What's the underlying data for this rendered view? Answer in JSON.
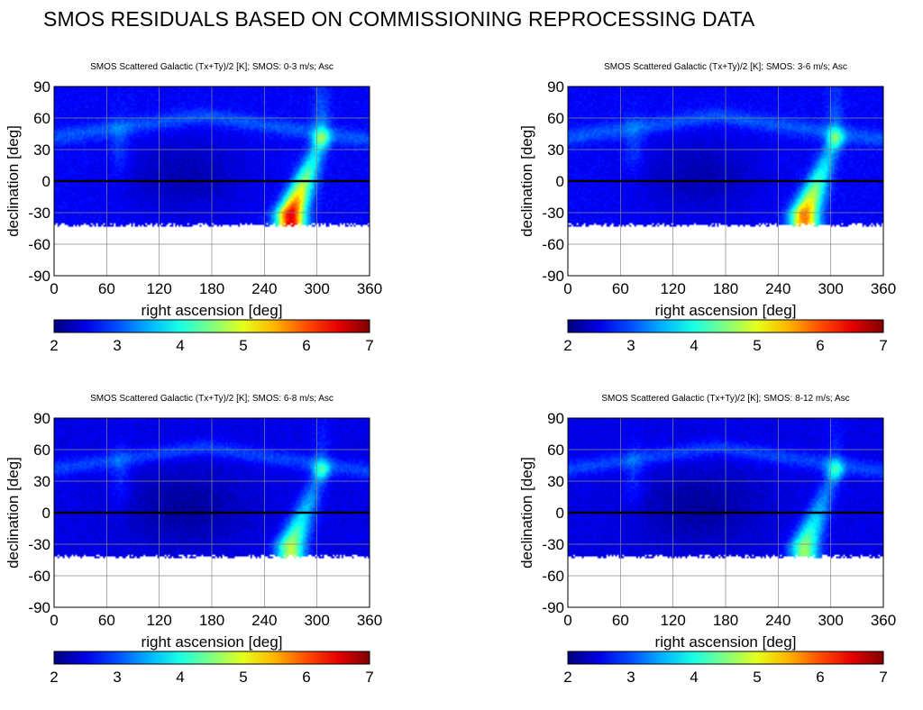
{
  "page": {
    "title": "SMOS RESIDUALS BASED ON COMMISSIONING REPROCESSING DATA"
  },
  "colors": {
    "map_background": "#0a2ad8",
    "equator_line": "#000000",
    "grid": "#888888",
    "colormap": "jet"
  },
  "chart_data": [
    {
      "type": "heatmap",
      "title": "SMOS Scattered Galactic (Tx+Ty)/2 [K]; SMOS: 0-3 m/s; Asc",
      "xlabel": "right ascension [deg]",
      "ylabel": "declination [deg]",
      "xlim": [
        0,
        360
      ],
      "ylim": [
        -90,
        90
      ],
      "xticks": [
        "0",
        "60",
        "120",
        "180",
        "240",
        "300",
        "360"
      ],
      "yticks": [
        "90",
        "60",
        "30",
        "0",
        "-30",
        "-60",
        "-90"
      ],
      "colorbar": {
        "range": [
          2,
          7
        ],
        "ticks": [
          "2",
          "3",
          "4",
          "5",
          "6",
          "7"
        ]
      },
      "grid": true,
      "coverage_min_dec": -42,
      "features": {
        "galactic_plane_peak_ra": 270,
        "galactic_plane_peak_dec": -30,
        "peak_value": 6.5,
        "cygnus_spot_ra": 305,
        "cygnus_spot_dec": 40,
        "background_value": 2.6
      }
    },
    {
      "type": "heatmap",
      "title": "SMOS Scattered Galactic (Tx+Ty)/2 [K]; SMOS: 3-6 m/s; Asc",
      "xlabel": "right ascension [deg]",
      "ylabel": "declination [deg]",
      "xlim": [
        0,
        360
      ],
      "ylim": [
        -90,
        90
      ],
      "xticks": [
        "0",
        "60",
        "120",
        "180",
        "240",
        "300",
        "360"
      ],
      "yticks": [
        "90",
        "60",
        "30",
        "0",
        "-30",
        "-60",
        "-90"
      ],
      "colorbar": {
        "range": [
          2,
          7
        ],
        "ticks": [
          "2",
          "3",
          "4",
          "5",
          "6",
          "7"
        ]
      },
      "grid": true,
      "coverage_min_dec": -42,
      "features": {
        "galactic_plane_peak_ra": 270,
        "galactic_plane_peak_dec": -30,
        "peak_value": 5.8,
        "cygnus_spot_ra": 305,
        "cygnus_spot_dec": 40,
        "background_value": 2.6
      }
    },
    {
      "type": "heatmap",
      "title": "SMOS Scattered Galactic (Tx+Ty)/2 [K]; SMOS: 6-8 m/s; Asc",
      "xlabel": "right ascension [deg]",
      "ylabel": "declination [deg]",
      "xlim": [
        0,
        360
      ],
      "ylim": [
        -90,
        90
      ],
      "xticks": [
        "0",
        "60",
        "120",
        "180",
        "240",
        "300",
        "360"
      ],
      "yticks": [
        "90",
        "60",
        "30",
        "0",
        "-30",
        "-60",
        "-90"
      ],
      "colorbar": {
        "range": [
          2,
          7
        ],
        "ticks": [
          "2",
          "3",
          "4",
          "5",
          "6",
          "7"
        ]
      },
      "grid": true,
      "coverage_min_dec": -42,
      "features": {
        "galactic_plane_peak_ra": 270,
        "galactic_plane_peak_dec": -30,
        "peak_value": 4.8,
        "cygnus_spot_ra": 305,
        "cygnus_spot_dec": 40,
        "background_value": 2.5
      }
    },
    {
      "type": "heatmap",
      "title": "SMOS Scattered Galactic (Tx+Ty)/2 [K]; SMOS: 8-12 m/s; Asc",
      "xlabel": "right ascension [deg]",
      "ylabel": "declination [deg]",
      "xlim": [
        0,
        360
      ],
      "ylim": [
        -90,
        90
      ],
      "xticks": [
        "0",
        "60",
        "120",
        "180",
        "240",
        "300",
        "360"
      ],
      "yticks": [
        "90",
        "60",
        "30",
        "0",
        "-30",
        "-60",
        "-90"
      ],
      "colorbar": {
        "range": [
          2,
          7
        ],
        "ticks": [
          "2",
          "3",
          "4",
          "5",
          "6",
          "7"
        ]
      },
      "grid": true,
      "coverage_min_dec": -42,
      "features": {
        "galactic_plane_peak_ra": 270,
        "galactic_plane_peak_dec": -30,
        "peak_value": 4.6,
        "cygnus_spot_ra": 305,
        "cygnus_spot_dec": 40,
        "background_value": 2.5
      }
    }
  ]
}
